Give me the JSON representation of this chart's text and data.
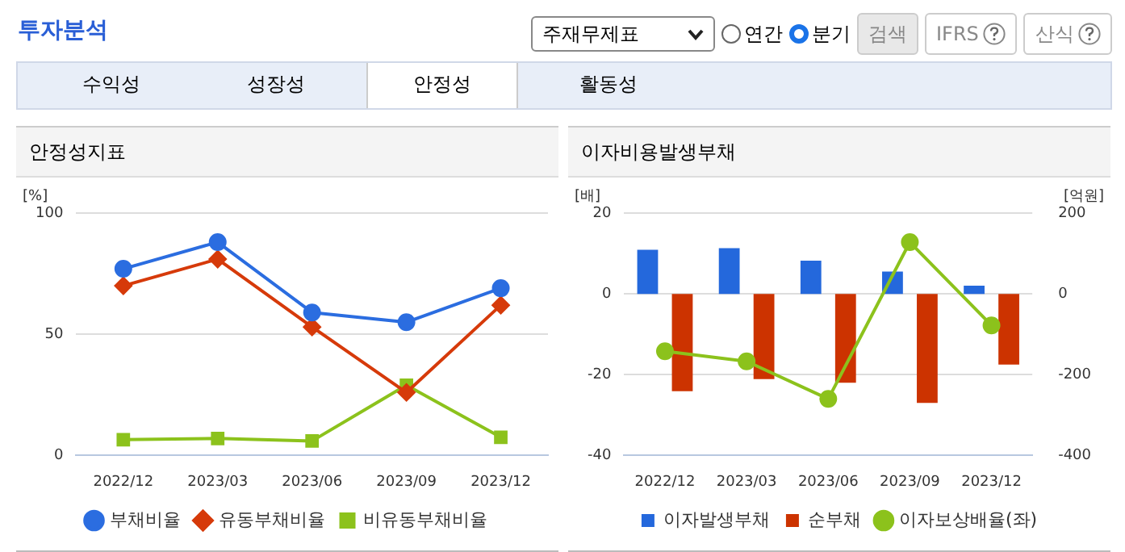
{
  "chart_data": [
    {
      "type": "other",
      "title": "투자분석",
      "annotations": [
        "주재무제표",
        "연간",
        "분기",
        "검색",
        "IFRS",
        "산식",
        "수익성",
        "성장성",
        "안정성",
        "활동성"
      ]
    },
    {
      "type": "line",
      "title": "안정성지표",
      "ylabel": "[%]",
      "categories": [
        "2022/12",
        "2023/03",
        "2023/06",
        "2023/09",
        "2023/12"
      ],
      "ylim": [
        0,
        100
      ],
      "yticks": [
        0,
        50,
        100
      ],
      "grid": "y",
      "legend": "bottom",
      "series": [
        {
          "name": "부채비율",
          "color": "#2b6de0",
          "marker": "circle",
          "values": [
            77,
            88,
            59,
            55,
            69
          ]
        },
        {
          "name": "유동부채비율",
          "color": "#d63a0a",
          "marker": "diamond",
          "values": [
            70,
            81,
            53,
            26,
            62
          ]
        },
        {
          "name": "비유동부채비율",
          "color": "#8cc21c",
          "marker": "square",
          "values": [
            6.5,
            7,
            6,
            29,
            7.5
          ]
        }
      ]
    },
    {
      "type": "bar",
      "title": "이자비용발생부채",
      "ylabel": "[배]",
      "y2label": "[억원]",
      "categories": [
        "2022/12",
        "2023/03",
        "2023/06",
        "2023/09",
        "2023/12"
      ],
      "ylim": [
        -40,
        20
      ],
      "yticks": [
        -40,
        -20,
        0,
        20
      ],
      "y2lim": [
        -400,
        200
      ],
      "y2ticks": [
        -400,
        -200,
        0,
        200
      ],
      "grid": "y",
      "legend": "bottom",
      "series": [
        {
          "name": "이자발생부채",
          "color": "#2468dc",
          "axis": "y2",
          "values": [
            109,
            113,
            82,
            55,
            20
          ]
        },
        {
          "name": "순부채",
          "color": "#cc3300",
          "axis": "y2",
          "values": [
            -241,
            -211,
            -220,
            -270,
            -175
          ]
        },
        {
          "name": "이자보상배율(좌)",
          "type": "line",
          "color": "#8cc21c",
          "axis": "y",
          "marker": "circle",
          "values": [
            -14.2,
            -16.7,
            -26,
            12.8,
            -7.8
          ]
        }
      ]
    }
  ]
}
